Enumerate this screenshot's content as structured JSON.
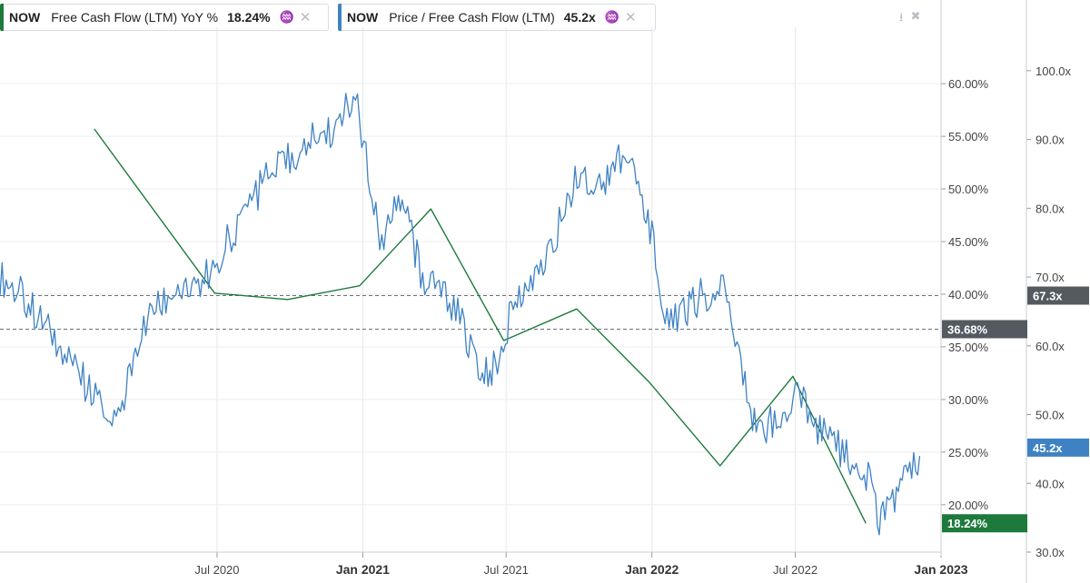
{
  "legend": [
    {
      "ticker": "NOW",
      "label": "Free Cash Flow (LTM) YoY %",
      "value": "18.24%",
      "color": "#1e7a3c"
    },
    {
      "ticker": "NOW",
      "label": "Price / Free Cash Flow (LTM)",
      "value": "45.2x",
      "color": "#3f82c4"
    }
  ],
  "toolbar": {
    "download_icon": "download-icon",
    "collapse_icon": "collapse-icon",
    "chart_type_icon": "chart-type-icon",
    "close_icon": "close-icon"
  },
  "chart_data": {
    "type": "line",
    "x_axis": {
      "ticks": [
        {
          "label": "Jul 2020",
          "date": "2020-07-01",
          "bold": false
        },
        {
          "label": "Jan 2021",
          "date": "2021-01-01",
          "bold": true
        },
        {
          "label": "Jul 2021",
          "date": "2021-07-01",
          "bold": false
        },
        {
          "label": "Jan 2022",
          "date": "2022-01-01",
          "bold": true
        },
        {
          "label": "Jul 2022",
          "date": "2022-07-01",
          "bold": false
        },
        {
          "label": "Jan 2023",
          "date": "2023-01-01",
          "bold": true
        }
      ],
      "range": [
        "2019-10-01",
        "2023-01-01"
      ]
    },
    "y_left": {
      "ticks": [
        "60.00%",
        "55.00%",
        "50.00%",
        "45.00%",
        "40.00%",
        "35.00%",
        "30.00%",
        "25.00%",
        "20.00%"
      ],
      "range": [
        15.5,
        64.5
      ]
    },
    "y_right": {
      "ticks": [
        "100.0x",
        "90.0x",
        "80.0x",
        "70.0x",
        "60.0x",
        "50.0x",
        "40.0x",
        "30.0x"
      ],
      "range": [
        30,
        105
      ]
    },
    "reference_lines": [
      {
        "label": "36.68%",
        "axis": "left",
        "value": 36.68,
        "color": "#555a60"
      },
      {
        "label": "67.3x",
        "axis": "right",
        "value": 67.3,
        "color": "#555a60"
      }
    ],
    "current_badges": [
      {
        "label": "45.2x",
        "axis": "right",
        "value": 45.2,
        "color": "#3f82c4"
      },
      {
        "label": "18.24%",
        "axis": "left",
        "value": 18.24,
        "color": "#1e7a3c"
      }
    ],
    "series": [
      {
        "name": "Free Cash Flow (LTM) YoY %",
        "axis": "left",
        "color": "#1e7a3c",
        "x": [
          "2020-01-28",
          "2020-06-28",
          "2020-09-28",
          "2020-12-28",
          "2021-03-28",
          "2021-06-28",
          "2021-09-28",
          "2021-12-28",
          "2022-03-28",
          "2022-06-28",
          "2022-09-28"
        ],
        "y": [
          55.7,
          40.1,
          39.5,
          40.8,
          48.1,
          35.6,
          38.6,
          31.7,
          23.7,
          32.2,
          18.24
        ]
      },
      {
        "name": "Price / Free Cash Flow (LTM)",
        "axis": "right",
        "color": "#3f82c4",
        "x": [
          "2019-10-01",
          "2019-11-01",
          "2019-12-01",
          "2020-01-01",
          "2020-02-01",
          "2020-03-01",
          "2020-03-20",
          "2020-04-15",
          "2020-05-15",
          "2020-06-15",
          "2020-07-01",
          "2020-08-01",
          "2020-09-01",
          "2020-10-01",
          "2020-11-01",
          "2020-12-01",
          "2020-12-20",
          "2021-01-05",
          "2021-01-25",
          "2021-02-15",
          "2021-03-01",
          "2021-03-15",
          "2021-04-10",
          "2021-05-01",
          "2021-05-12",
          "2021-06-01",
          "2021-06-20",
          "2021-07-10",
          "2021-08-01",
          "2021-09-01",
          "2021-10-01",
          "2021-11-01",
          "2021-11-20",
          "2021-12-10",
          "2022-01-01",
          "2022-01-20",
          "2022-02-10",
          "2022-03-01",
          "2022-04-01",
          "2022-05-01",
          "2022-05-15",
          "2022-06-10",
          "2022-07-01",
          "2022-08-01",
          "2022-09-01",
          "2022-10-01",
          "2022-10-15",
          "2022-11-01",
          "2022-11-20",
          "2022-12-05"
        ],
        "y": [
          70,
          67,
          62,
          57,
          52,
          49,
          60,
          65,
          69,
          70,
          72,
          79,
          84,
          87,
          90,
          92,
          97,
          88,
          75,
          82,
          78,
          70,
          68,
          65,
          61,
          55,
          58,
          66,
          70,
          76,
          85,
          84,
          88,
          85,
          76,
          63,
          65,
          67,
          69,
          53,
          47,
          50,
          53,
          48,
          44,
          41,
          35,
          37,
          42,
          44
        ]
      }
    ]
  }
}
